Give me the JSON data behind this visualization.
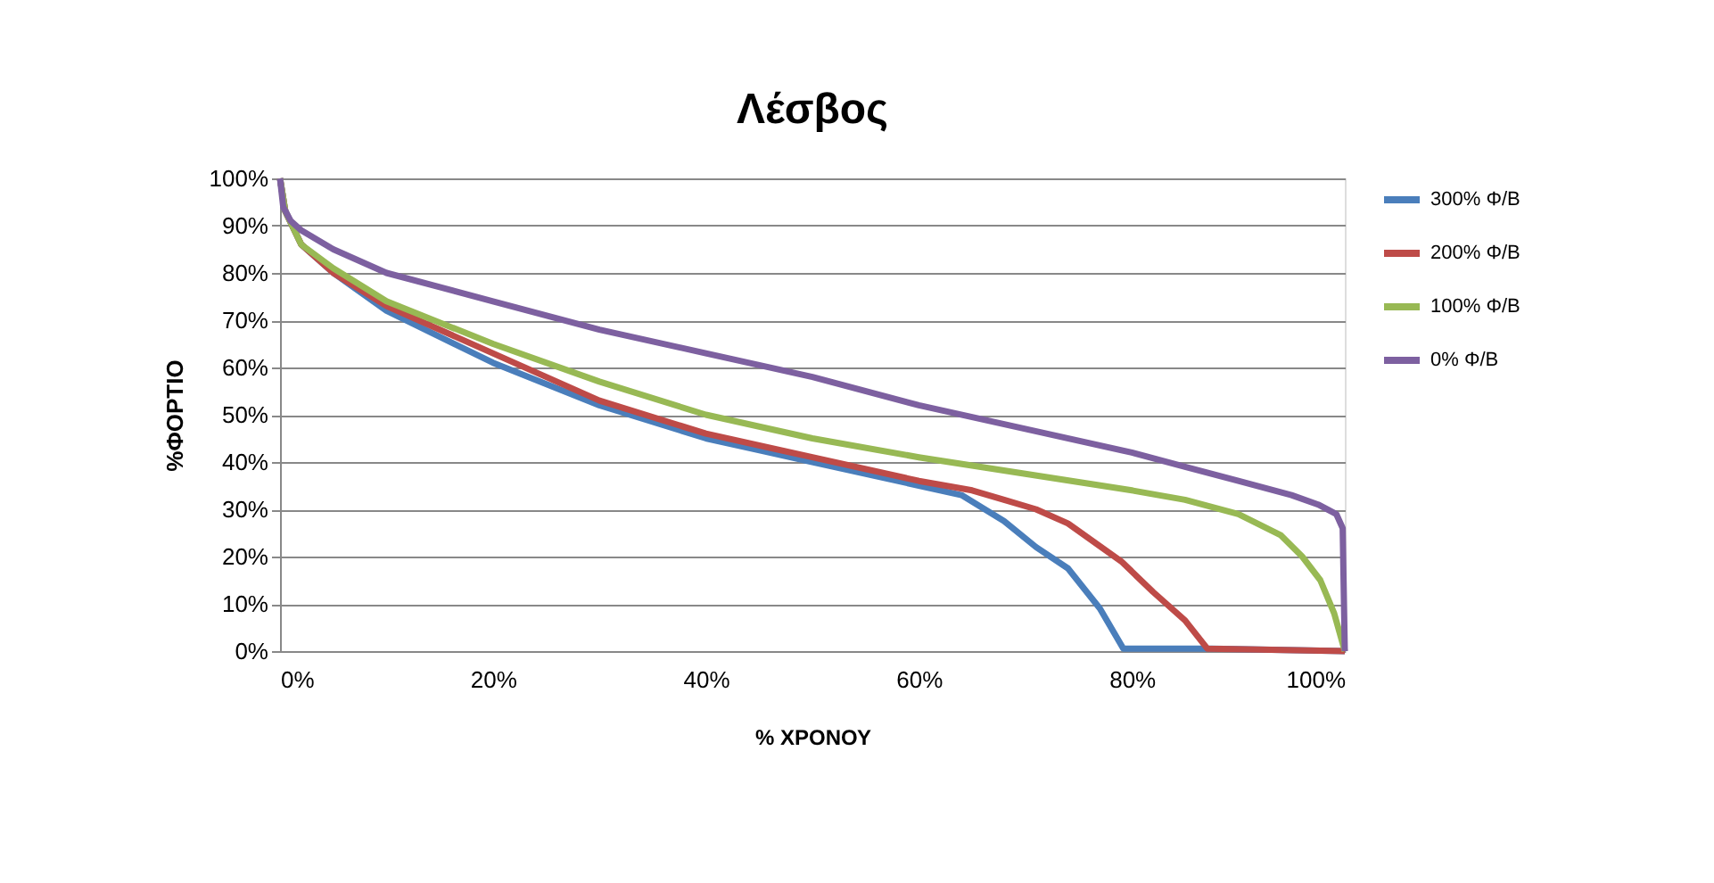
{
  "chart_data": {
    "type": "line",
    "title": "Λέσβος",
    "xlabel": "% ΧΡΟΝΟΥ",
    "ylabel": "%ΦΟΡΤΙΟ",
    "xlim": [
      0,
      100
    ],
    "ylim": [
      0,
      100
    ],
    "xticks": [
      {
        "value": 0,
        "label": "0%"
      },
      {
        "value": 20,
        "label": "20%"
      },
      {
        "value": 40,
        "label": "40%"
      },
      {
        "value": 60,
        "label": "60%"
      },
      {
        "value": 80,
        "label": "80%"
      },
      {
        "value": 100,
        "label": "100%"
      }
    ],
    "yticks": [
      {
        "value": 0,
        "label": "0%"
      },
      {
        "value": 10,
        "label": "10%"
      },
      {
        "value": 20,
        "label": "20%"
      },
      {
        "value": 30,
        "label": "30%"
      },
      {
        "value": 40,
        "label": "40%"
      },
      {
        "value": 50,
        "label": "50%"
      },
      {
        "value": 60,
        "label": "60%"
      },
      {
        "value": 70,
        "label": "70%"
      },
      {
        "value": 80,
        "label": "80%"
      },
      {
        "value": 90,
        "label": "90%"
      },
      {
        "value": 100,
        "label": "100%"
      }
    ],
    "grid": "y",
    "legend": "right",
    "marker": "none",
    "line_style": "solid",
    "series": [
      {
        "name": "300% Φ/Β",
        "color": "#4a7ebb",
        "x": [
          0,
          0.5,
          2,
          5,
          10,
          20,
          30,
          40,
          50,
          60,
          64,
          68,
          71,
          74,
          77,
          79.2,
          83,
          87.5,
          100
        ],
        "values": [
          100,
          93,
          86,
          80,
          72,
          61,
          52,
          45,
          40,
          35,
          33,
          27.5,
          22,
          17.5,
          9,
          0.5,
          0.5,
          0.5,
          0
        ]
      },
      {
        "name": "200% Φ/Β",
        "color": "#be4b48",
        "x": [
          0,
          0.5,
          2,
          5,
          10,
          20,
          30,
          40,
          50,
          60,
          65,
          68,
          71,
          74,
          79,
          82,
          85,
          87.1,
          100
        ],
        "values": [
          100,
          93,
          86,
          80,
          73,
          63,
          53,
          46,
          41,
          36,
          34,
          32,
          30,
          27,
          19,
          12.5,
          6.5,
          0.5,
          0
        ]
      },
      {
        "name": "100% Φ/Β",
        "color": "#98b954",
        "x": [
          0,
          0.5,
          2,
          5,
          10,
          20,
          30,
          40,
          50,
          60,
          70,
          80,
          85,
          90,
          94,
          96,
          97.7,
          99,
          100
        ],
        "values": [
          100,
          93,
          86,
          81,
          74,
          65,
          57,
          50,
          45,
          41,
          37.5,
          34,
          32,
          29,
          24.5,
          20,
          15,
          8,
          0
        ]
      },
      {
        "name": "0% Φ/Β",
        "color": "#7d60a0",
        "x": [
          0,
          0.3,
          1,
          2,
          5,
          10,
          15,
          20,
          30,
          40,
          50,
          60,
          70,
          80,
          85,
          90,
          95,
          97.5,
          99.2,
          99.8,
          100
        ],
        "values": [
          100,
          94,
          91,
          89,
          85,
          80,
          77,
          74,
          68,
          63,
          58,
          52,
          47,
          42,
          39,
          36,
          33,
          31,
          29,
          26,
          0
        ]
      }
    ]
  }
}
